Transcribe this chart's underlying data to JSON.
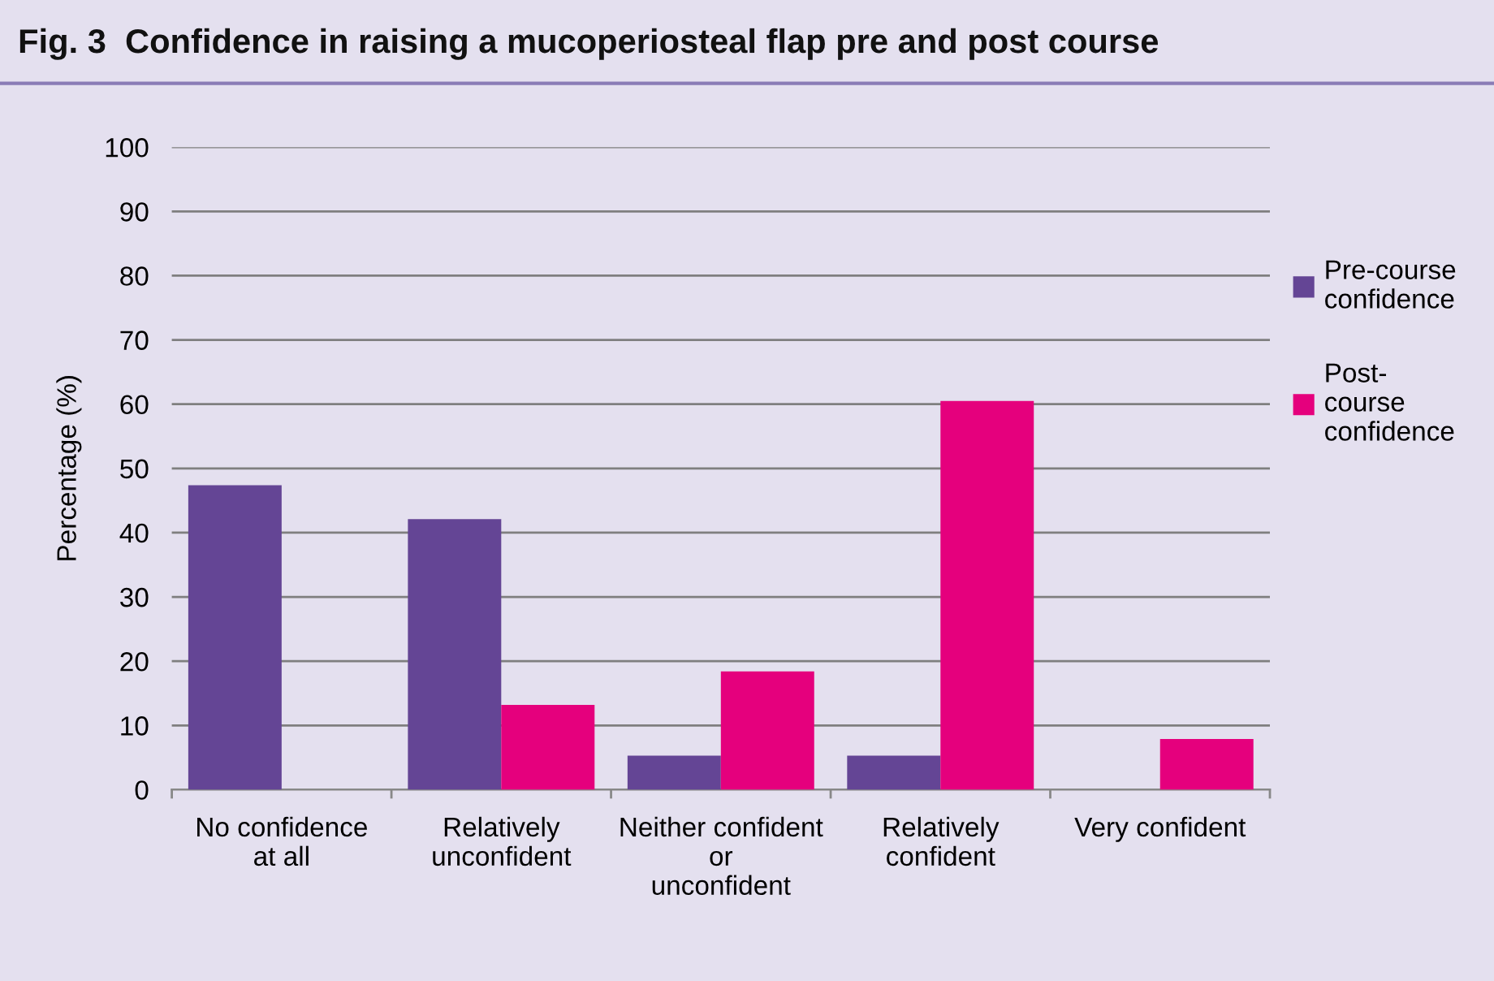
{
  "chart_data": {
    "type": "bar",
    "title": "Fig. 3  Confidence in raising a mucoperiosteal flap pre and post course",
    "ylabel": "Percentage (%)",
    "categories": [
      "No confidence\nat all",
      "Relatively\nunconfident",
      "Neither confident\nor\nunconfident",
      "Relatively\nconfident",
      "Very confident"
    ],
    "series": [
      {
        "name": "Pre-course\nconfidence",
        "color": "#644595",
        "values": [
          47.4,
          42.1,
          5.3,
          5.3,
          0
        ]
      },
      {
        "name": "Post-\ncourse\nconfidence",
        "color": "#e5007d",
        "values": [
          0,
          13.2,
          18.4,
          60.5,
          7.9
        ]
      }
    ],
    "ylim": [
      0,
      100
    ],
    "yticks": [
      0,
      10,
      20,
      30,
      40,
      50,
      60,
      70,
      80,
      90,
      100
    ],
    "grid": "y",
    "legend": "right"
  }
}
